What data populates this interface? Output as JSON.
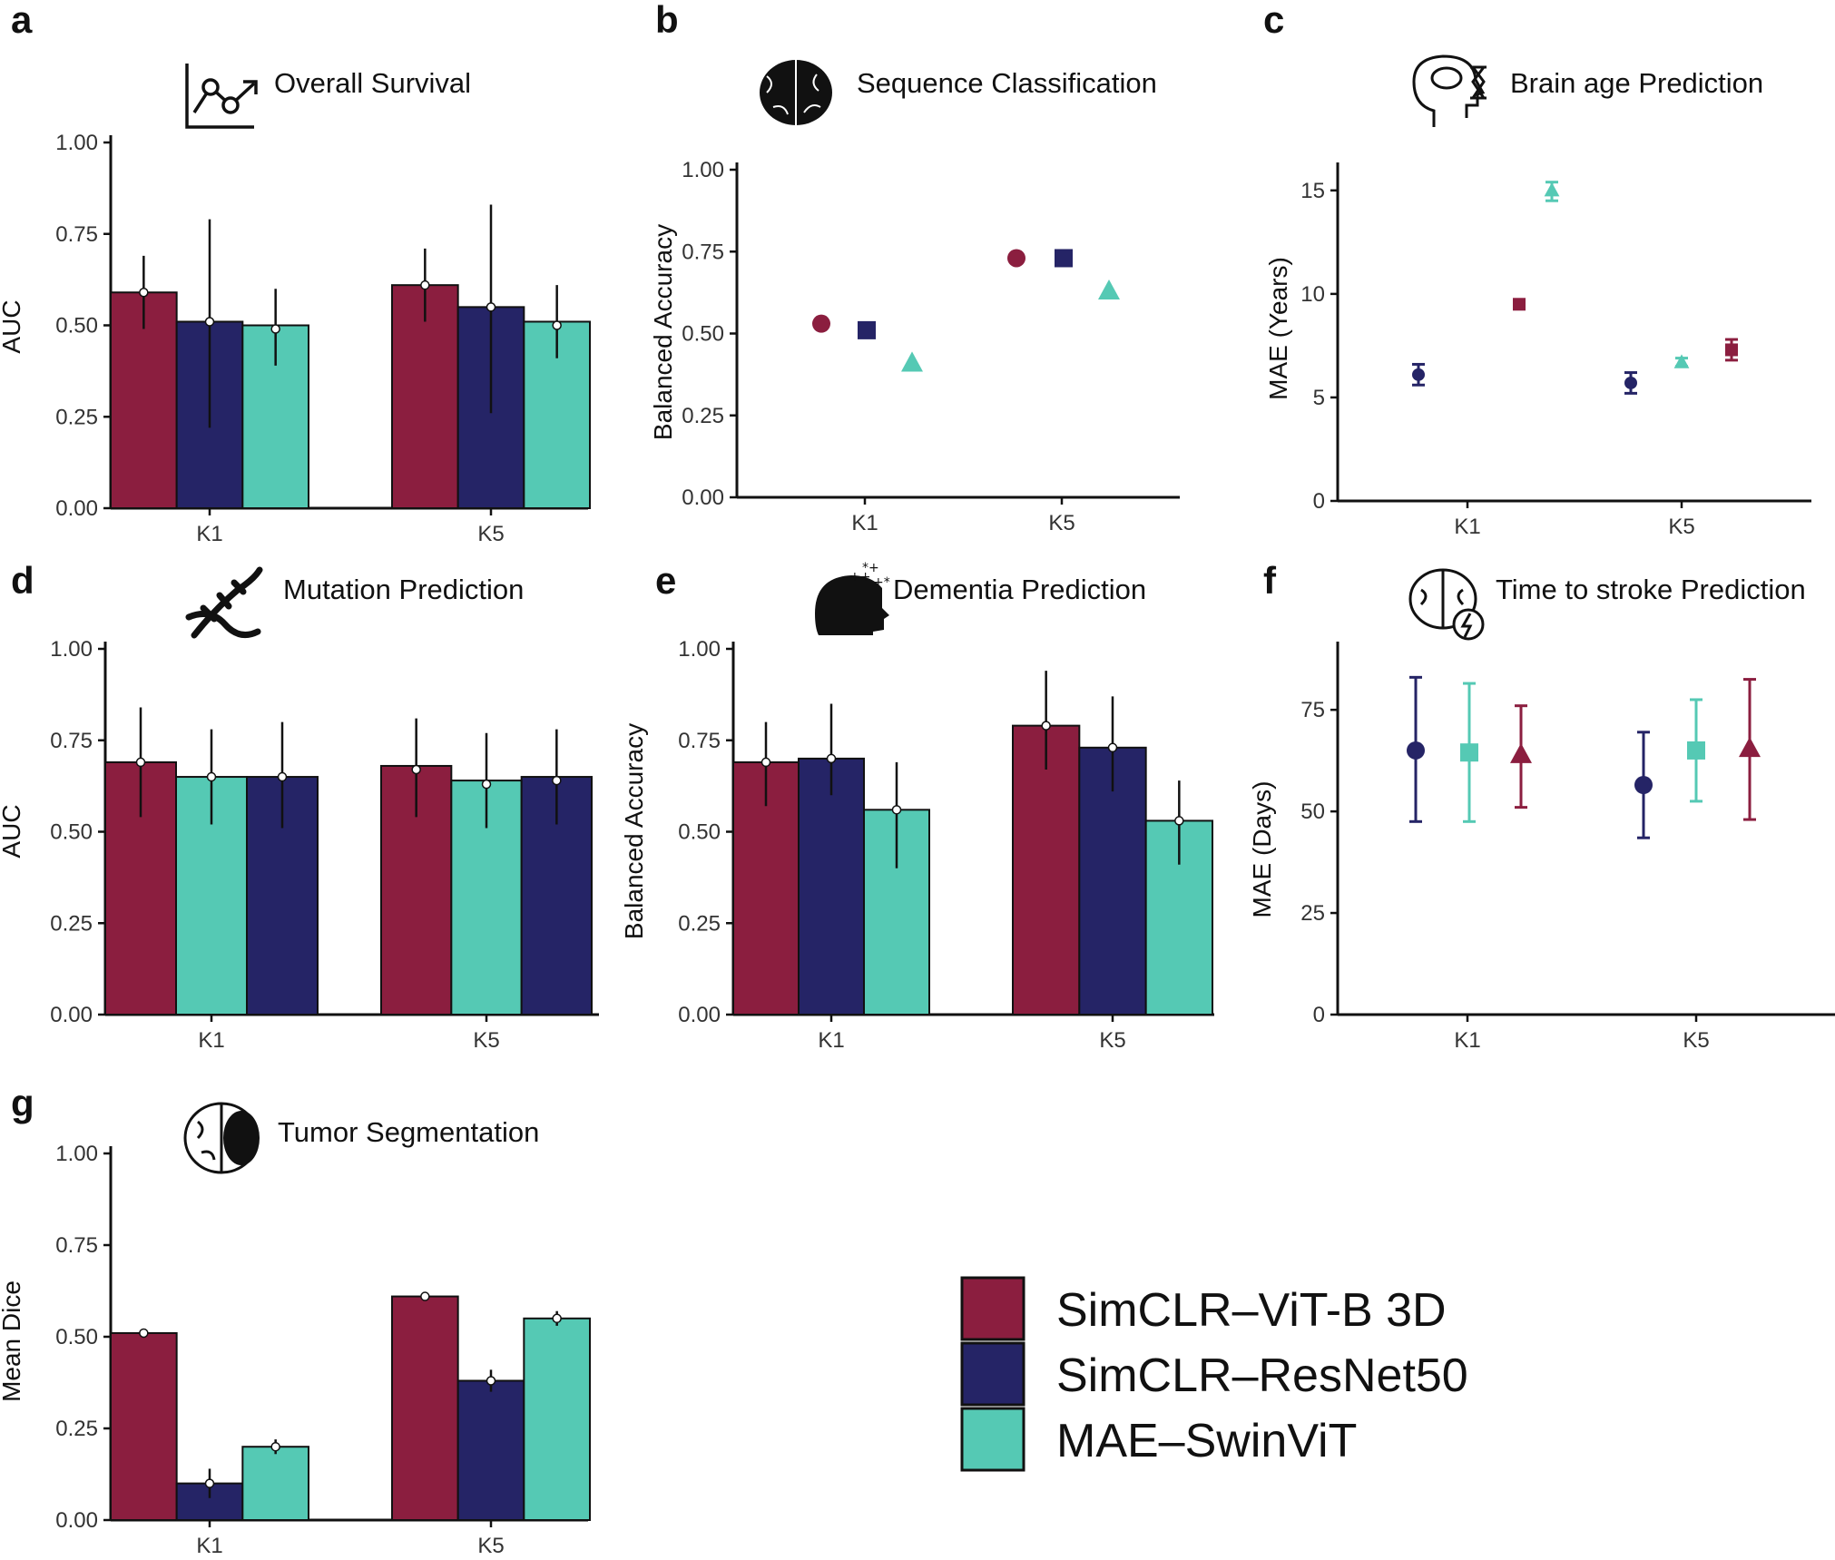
{
  "figure": {
    "legend": [
      {
        "label": "SimCLR–ViT-B 3D",
        "color": "#8b1e3f"
      },
      {
        "label": "SimCLR–ResNet50",
        "color": "#252466"
      },
      {
        "label": "MAE–SwinViT",
        "color": "#55c9b4"
      }
    ],
    "icons": [
      "line-chart-icon",
      "brain-icon",
      "head-hourglass-icon",
      "dna-icon",
      "dissolving-head-icon",
      "brain-lightning-icon",
      "brain-tumor-icon"
    ]
  },
  "chart_data": [
    {
      "panel": "a",
      "title": "Overall Survival",
      "type": "bar",
      "icon": "line-chart-icon",
      "categories": [
        "K1",
        "K5"
      ],
      "ylabel": "AUC",
      "ylim": [
        0,
        1
      ],
      "yticks": [
        0,
        0.25,
        0.5,
        0.75,
        1.0
      ],
      "ytick_labels": [
        "0.00",
        "0.25",
        "0.50",
        "0.75",
        "1.00"
      ],
      "series": [
        {
          "name": "SimCLR–ViT-B 3D",
          "values": [
            0.59,
            0.61
          ],
          "point": [
            0.59,
            0.61
          ],
          "err_low": [
            0.49,
            0.51
          ],
          "err_high": [
            0.69,
            0.71
          ]
        },
        {
          "name": "SimCLR–ResNet50",
          "values": [
            0.51,
            0.55
          ],
          "point": [
            0.51,
            0.55
          ],
          "err_low": [
            0.22,
            0.26
          ],
          "err_high": [
            0.79,
            0.83
          ]
        },
        {
          "name": "MAE–SwinViT",
          "values": [
            0.5,
            0.51
          ],
          "point": [
            0.49,
            0.5
          ],
          "err_low": [
            0.39,
            0.41
          ],
          "err_high": [
            0.6,
            0.61
          ]
        }
      ]
    },
    {
      "panel": "b",
      "title": "Sequence Classification",
      "type": "scatter",
      "icon": "brain-icon",
      "categories": [
        "K1",
        "K5"
      ],
      "ylabel": "Balanced Accuracy",
      "ylim": [
        0,
        1
      ],
      "yticks": [
        0,
        0.25,
        0.5,
        0.75,
        1.0
      ],
      "ytick_labels": [
        "0.00",
        "0.25",
        "0.50",
        "0.75",
        "1.00"
      ],
      "series": [
        {
          "name": "SimCLR–ViT-B 3D",
          "shape": "circle",
          "values": [
            0.53,
            0.73
          ]
        },
        {
          "name": "SimCLR–ResNet50",
          "shape": "square",
          "values": [
            0.51,
            0.73
          ]
        },
        {
          "name": "MAE–SwinViT",
          "shape": "triangle",
          "values": [
            0.41,
            0.63
          ]
        }
      ]
    },
    {
      "panel": "c",
      "title": "Brain age Prediction",
      "type": "scatter",
      "icon": "head-hourglass-icon",
      "categories": [
        "K1",
        "K5"
      ],
      "ylabel": "MAE (Years)",
      "ylim": [
        0,
        16
      ],
      "yticks": [
        0,
        5,
        10,
        15
      ],
      "ytick_labels": [
        "0",
        "5",
        "10",
        "15"
      ],
      "series": [
        {
          "name": "SimCLR–ResNet50",
          "shape": "circle",
          "values": [
            6.1,
            5.7
          ],
          "err_low": [
            5.6,
            5.2
          ],
          "err_high": [
            6.6,
            6.2
          ]
        },
        {
          "name": "MAE–SwinViT",
          "shape": "triangle",
          "values": [
            15.0,
            6.7
          ],
          "err_low": [
            14.5,
            6.5
          ],
          "err_high": [
            15.4,
            6.9
          ]
        },
        {
          "name": "SimCLR–ViT-B 3D",
          "shape": "square",
          "values": [
            9.5,
            7.3
          ],
          "err_low": [
            9.3,
            6.8
          ],
          "err_high": [
            9.7,
            7.8
          ]
        }
      ]
    },
    {
      "panel": "d",
      "title": "Mutation Prediction",
      "type": "bar",
      "icon": "dna-icon",
      "categories": [
        "K1",
        "K5"
      ],
      "ylabel": "AUC",
      "ylim": [
        0,
        1
      ],
      "yticks": [
        0,
        0.25,
        0.5,
        0.75,
        1.0
      ],
      "ytick_labels": [
        "0.00",
        "0.25",
        "0.50",
        "0.75",
        "1.00"
      ],
      "series": [
        {
          "name": "SimCLR–ViT-B 3D",
          "values": [
            0.69,
            0.68
          ],
          "point": [
            0.69,
            0.67
          ],
          "err_low": [
            0.54,
            0.54
          ],
          "err_high": [
            0.84,
            0.81
          ]
        },
        {
          "name": "MAE–SwinViT",
          "values": [
            0.65,
            0.64
          ],
          "point": [
            0.65,
            0.63
          ],
          "err_low": [
            0.52,
            0.51
          ],
          "err_high": [
            0.78,
            0.77
          ]
        },
        {
          "name": "SimCLR–ResNet50",
          "values": [
            0.65,
            0.65
          ],
          "point": [
            0.65,
            0.64
          ],
          "err_low": [
            0.51,
            0.52
          ],
          "err_high": [
            0.8,
            0.78
          ]
        }
      ]
    },
    {
      "panel": "e",
      "title": "Dementia Prediction",
      "type": "bar",
      "icon": "dissolving-head-icon",
      "categories": [
        "K1",
        "K5"
      ],
      "ylabel": "Balanced Accuracy",
      "ylim": [
        0,
        1
      ],
      "yticks": [
        0,
        0.25,
        0.5,
        0.75,
        1.0
      ],
      "ytick_labels": [
        "0.00",
        "0.25",
        "0.50",
        "0.75",
        "1.00"
      ],
      "series": [
        {
          "name": "SimCLR–ViT-B 3D",
          "values": [
            0.69,
            0.79
          ],
          "point": [
            0.69,
            0.79
          ],
          "err_low": [
            0.57,
            0.67
          ],
          "err_high": [
            0.8,
            0.94
          ]
        },
        {
          "name": "SimCLR–ResNet50",
          "values": [
            0.7,
            0.73
          ],
          "point": [
            0.7,
            0.73
          ],
          "err_low": [
            0.6,
            0.61
          ],
          "err_high": [
            0.85,
            0.87
          ]
        },
        {
          "name": "MAE–SwinViT",
          "values": [
            0.56,
            0.53
          ],
          "point": [
            0.56,
            0.53
          ],
          "err_low": [
            0.4,
            0.41
          ],
          "err_high": [
            0.69,
            0.64
          ]
        }
      ]
    },
    {
      "panel": "f",
      "title": "Time to stroke Prediction",
      "type": "scatter",
      "icon": "brain-lightning-icon",
      "categories": [
        "K1",
        "K5"
      ],
      "ylabel": "MAE (Days)",
      "ylim": [
        0,
        90
      ],
      "yticks": [
        0,
        25,
        50,
        75
      ],
      "ytick_labels": [
        "0",
        "25",
        "50",
        "75"
      ],
      "series": [
        {
          "name": "SimCLR–ResNet50",
          "shape": "circle",
          "values": [
            65,
            56.5
          ],
          "err_low": [
            47.5,
            43.5
          ],
          "err_high": [
            83,
            69.5
          ]
        },
        {
          "name": "MAE–SwinViT",
          "shape": "square",
          "values": [
            64.5,
            65
          ],
          "err_low": [
            47.5,
            52.5
          ],
          "err_high": [
            81.5,
            77.5
          ]
        },
        {
          "name": "SimCLR–ViT-B 3D",
          "shape": "triangle",
          "values": [
            64,
            65.5
          ],
          "err_low": [
            51,
            48
          ],
          "err_high": [
            76,
            82.5
          ]
        }
      ]
    },
    {
      "panel": "g",
      "title": "Tumor Segmentation",
      "type": "bar",
      "icon": "brain-tumor-icon",
      "categories": [
        "K1",
        "K5"
      ],
      "ylabel": "Mean Dice",
      "ylim": [
        0,
        1
      ],
      "yticks": [
        0,
        0.25,
        0.5,
        0.75,
        1.0
      ],
      "ytick_labels": [
        "0.00",
        "0.25",
        "0.50",
        "0.75",
        "1.00"
      ],
      "series": [
        {
          "name": "SimCLR–ViT-B 3D",
          "values": [
            0.51,
            0.61
          ],
          "point": [
            0.51,
            0.61
          ],
          "err_low": [
            0.5,
            0.6
          ],
          "err_high": [
            0.52,
            0.62
          ]
        },
        {
          "name": "SimCLR–ResNet50",
          "values": [
            0.1,
            0.38
          ],
          "point": [
            0.1,
            0.38
          ],
          "err_low": [
            0.06,
            0.35
          ],
          "err_high": [
            0.14,
            0.41
          ]
        },
        {
          "name": "MAE–SwinViT",
          "values": [
            0.2,
            0.55
          ],
          "point": [
            0.2,
            0.55
          ],
          "err_low": [
            0.18,
            0.53
          ],
          "err_high": [
            0.22,
            0.57
          ]
        }
      ]
    }
  ]
}
